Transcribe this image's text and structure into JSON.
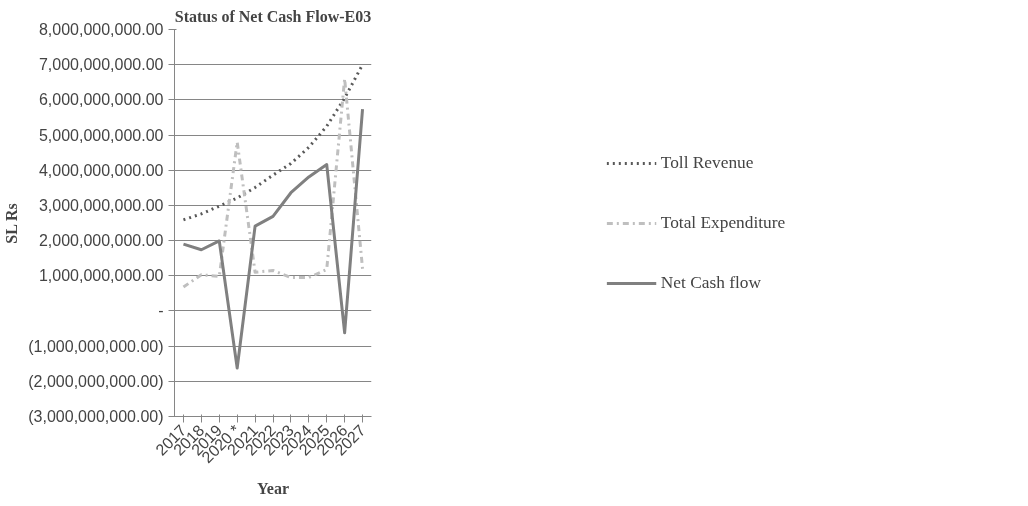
{
  "chart_data": {
    "type": "line",
    "title": "Status of Net Cash Flow-E03",
    "xlabel": "Year",
    "ylabel": "SL Rs",
    "categories": [
      "2017",
      "2018",
      "2019",
      "2020 *",
      "2021",
      "2022",
      "2023",
      "2024",
      "2025",
      "2026",
      "2027"
    ],
    "ylim": [
      -3000000000,
      8000000000
    ],
    "yticks": [
      {
        "value": -3000000000,
        "label": "(3,000,000,000.00)"
      },
      {
        "value": -2000000000,
        "label": "(2,000,000,000.00)"
      },
      {
        "value": -1000000000,
        "label": "(1,000,000,000.00)"
      },
      {
        "value": 0,
        "label": "-"
      },
      {
        "value": 1000000000,
        "label": "1,000,000,000.00"
      },
      {
        "value": 2000000000,
        "label": "2,000,000,000.00"
      },
      {
        "value": 3000000000,
        "label": "3,000,000,000.00"
      },
      {
        "value": 4000000000,
        "label": "4,000,000,000.00"
      },
      {
        "value": 5000000000,
        "label": "5,000,000,000.00"
      },
      {
        "value": 6000000000,
        "label": "6,000,000,000.00"
      },
      {
        "value": 7000000000,
        "label": "7,000,000,000.00"
      },
      {
        "value": 8000000000,
        "label": "8,000,000,000.00"
      }
    ],
    "grid": "y",
    "legend": "right",
    "marker": "none",
    "series": [
      {
        "name": "Toll Revenue",
        "color": "#595959",
        "line_style": "dotted",
        "values": [
          2590000000,
          2760000000,
          2980000000,
          3210000000,
          3510000000,
          3860000000,
          4190000000,
          4650000000,
          5250000000,
          6050000000,
          7000000000
        ]
      },
      {
        "name": "Total Expenditure",
        "color": "#bfbfbf",
        "line_style": "dashdot",
        "values": [
          680000000,
          1030000000,
          980000000,
          4800000000,
          1100000000,
          1150000000,
          950000000,
          950000000,
          1180000000,
          6600000000,
          1200000000
        ]
      },
      {
        "name": "Net Cash flow",
        "color": "#808080",
        "line_style": "solid",
        "values": [
          1900000000,
          1740000000,
          1990000000,
          -1620000000,
          2410000000,
          2690000000,
          3360000000,
          3810000000,
          4160000000,
          -620000000,
          5740000000
        ]
      }
    ]
  }
}
